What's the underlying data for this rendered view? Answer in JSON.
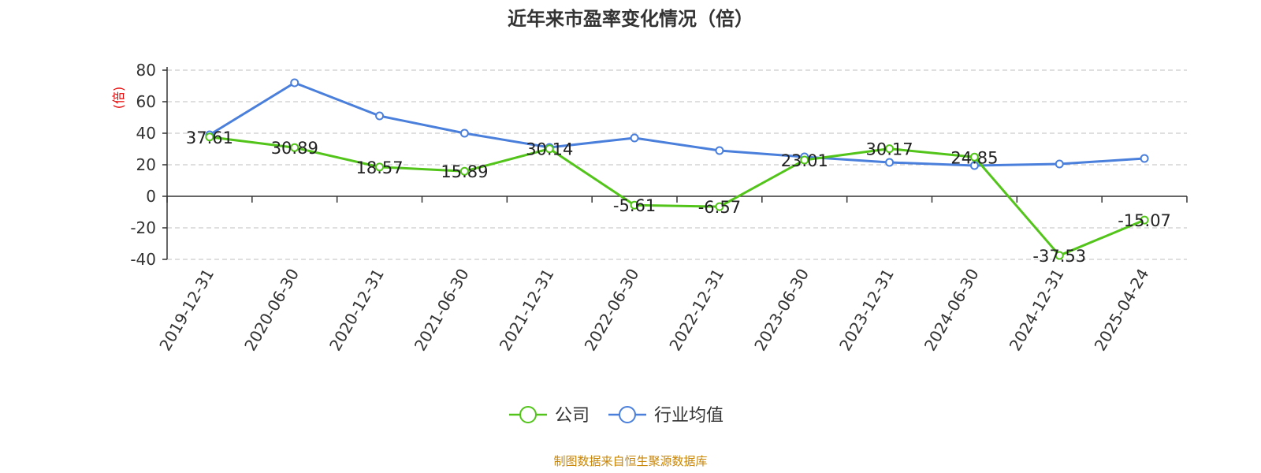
{
  "chart_data": {
    "type": "line",
    "title": "近年来市盈率变化情况（倍）",
    "ylabel": "(倍)",
    "ylim": [
      -40,
      80
    ],
    "yticks": [
      80,
      60,
      40,
      20,
      0,
      -20,
      -40
    ],
    "grid": true,
    "legend_position": "bottom-center",
    "categories": [
      "2019-12-31",
      "2020-06-30",
      "2020-12-31",
      "2021-06-30",
      "2021-12-31",
      "2022-06-30",
      "2022-12-31",
      "2023-06-30",
      "2023-12-31",
      "2024-06-30",
      "2024-12-31",
      "2025-04-24"
    ],
    "series": [
      {
        "name": "公司",
        "color": "#52c41a",
        "values": [
          37.61,
          30.89,
          18.57,
          15.89,
          30.14,
          -5.61,
          -6.57,
          23.01,
          30.17,
          24.85,
          -37.53,
          -15.07
        ],
        "labels": [
          "37.61",
          "30.89",
          "18.57",
          "15.89",
          "30.14",
          "-5.61",
          "-6.57",
          "23.01",
          "30.17",
          "24.85",
          "-37.53",
          "-15.07"
        ]
      },
      {
        "name": "行业均值",
        "color": "#4a7fdc",
        "values": [
          39,
          72,
          51,
          40,
          31,
          37,
          29,
          25,
          21.5,
          19.5,
          20.5,
          24
        ]
      }
    ],
    "source": "制图数据来自恒生聚源数据库"
  }
}
